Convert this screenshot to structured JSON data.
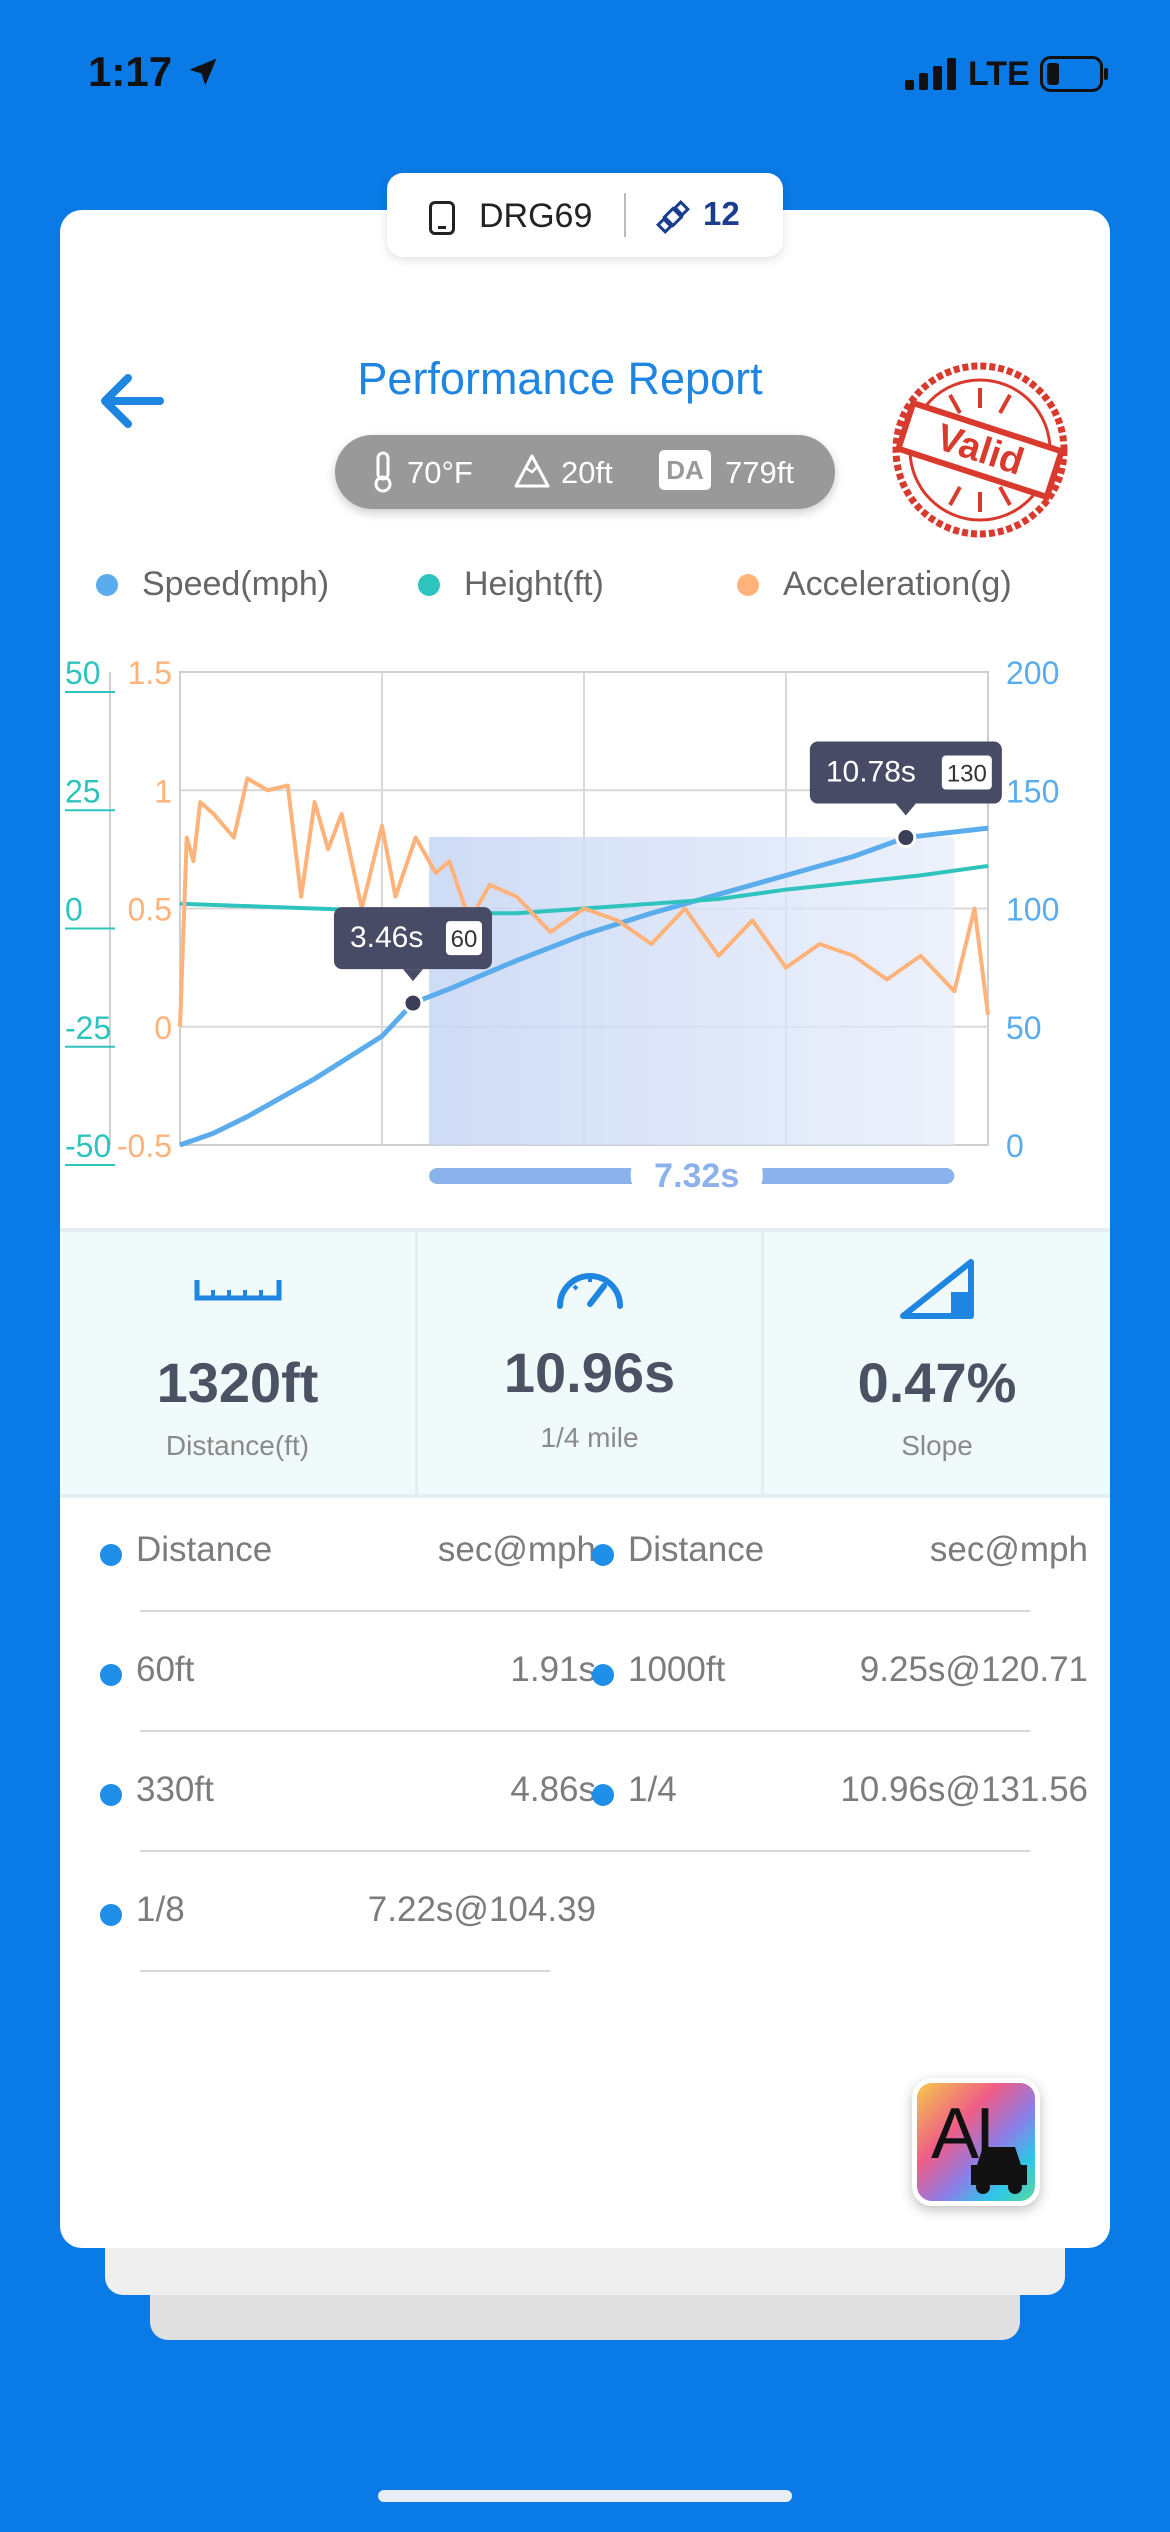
{
  "status_bar": {
    "time": "1:17",
    "network": "LTE"
  },
  "device": {
    "name": "DRG69",
    "satellites": "12"
  },
  "header": {
    "title": "Performance Report"
  },
  "conditions": {
    "temperature": "70°F",
    "altitude": "20ft",
    "da_label": "DA",
    "density_altitude": "779ft"
  },
  "stamp": {
    "text": "Valid"
  },
  "legend": [
    {
      "label": "Speed(mph)",
      "color": "#5aacec"
    },
    {
      "label": "Height(ft)",
      "color": "#2ec4bd"
    },
    {
      "label": "Acceleration(g)",
      "color": "#ffb27a"
    }
  ],
  "chart_data": {
    "type": "line",
    "left_axis_height": {
      "ticks": [
        "50",
        "25",
        "0",
        "-25",
        "-50"
      ],
      "range": [
        -50,
        50
      ],
      "color": "#2ec4bd"
    },
    "left_axis_accel": {
      "ticks": [
        "1.5",
        "1",
        "0.5",
        "0",
        "-0.5"
      ],
      "range": [
        -0.5,
        1.5
      ],
      "color": "#ffb27a"
    },
    "right_axis_speed": {
      "ticks": [
        "200",
        "150",
        "100",
        "50",
        "0"
      ],
      "range": [
        0,
        200
      ],
      "color": "#5aacec"
    },
    "x_range_seconds": [
      0,
      12
    ],
    "grid": true,
    "series": [
      {
        "name": "Speed(mph)",
        "color": "#5aacec",
        "x": [
          0,
          0.5,
          1,
          1.5,
          2,
          2.5,
          3,
          3.46,
          4,
          5,
          6,
          7,
          8,
          9,
          10,
          10.78,
          12
        ],
        "y": [
          0,
          5,
          12,
          20,
          28,
          37,
          46,
          60,
          66,
          78,
          89,
          98,
          106,
          114,
          122,
          130,
          134
        ]
      },
      {
        "name": "Height(ft)",
        "color": "#2ec4bd",
        "x": [
          0,
          1,
          2,
          3,
          4,
          5,
          6,
          7,
          8,
          9,
          10,
          11,
          12
        ],
        "y": [
          1,
          0.5,
          0,
          -0.5,
          -1,
          -1,
          0,
          1,
          2,
          4,
          5.5,
          7,
          9
        ]
      },
      {
        "name": "Acceleration(g)",
        "color": "#ffb27a",
        "x": [
          0,
          0.1,
          0.2,
          0.3,
          0.5,
          0.8,
          1,
          1.3,
          1.6,
          1.8,
          2,
          2.2,
          2.4,
          2.7,
          3,
          3.2,
          3.5,
          3.8,
          4,
          4.3,
          4.6,
          5,
          5.5,
          6,
          6.5,
          7,
          7.5,
          8,
          8.5,
          9,
          9.5,
          10,
          10.5,
          11,
          11.5,
          11.8,
          12
        ],
        "y": [
          0,
          0.8,
          0.7,
          0.95,
          0.9,
          0.8,
          1.05,
          1.0,
          1.02,
          0.55,
          0.95,
          0.75,
          0.9,
          0.5,
          0.85,
          0.55,
          0.8,
          0.65,
          0.7,
          0.45,
          0.6,
          0.55,
          0.4,
          0.5,
          0.45,
          0.35,
          0.5,
          0.3,
          0.45,
          0.25,
          0.35,
          0.3,
          0.2,
          0.3,
          0.15,
          0.5,
          0.05
        ]
      }
    ],
    "markers": [
      {
        "time": "3.46s",
        "speed": "60",
        "x": 3.46,
        "y": 60
      },
      {
        "time": "10.78s",
        "speed": "130",
        "x": 10.78,
        "y": 130
      }
    ],
    "selection": {
      "from": 3.7,
      "to": 11.5,
      "label": "7.32s"
    }
  },
  "stats": [
    {
      "value": "1320ft",
      "label": "Distance(ft)",
      "icon": "ruler-icon"
    },
    {
      "value": "10.96s",
      "label": "1/4 mile",
      "icon": "speedometer-icon"
    },
    {
      "value": "0.47%",
      "label": "Slope",
      "icon": "slope-icon"
    }
  ],
  "splits": {
    "header": {
      "key": "Distance",
      "value": "sec@mph"
    },
    "left": [
      {
        "key": "60ft",
        "value": "1.91s"
      },
      {
        "key": "330ft",
        "value": "4.86s"
      },
      {
        "key": "1/8",
        "value": "7.22s@104.39"
      }
    ],
    "right": [
      {
        "key": "1000ft",
        "value": "9.25s@120.71"
      },
      {
        "key": "1/4",
        "value": "10.96s@131.56"
      }
    ]
  },
  "ai_button": {
    "label": "AI"
  }
}
